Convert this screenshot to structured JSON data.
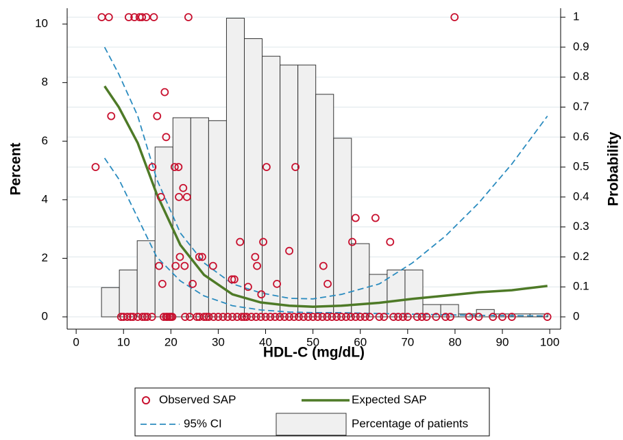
{
  "chart_data": {
    "type": "histogram",
    "xlabel": "HDL-C (mg/dL)",
    "ylabel": "Percent",
    "y2label": "Probability",
    "xlim": [
      -1.9,
      102.3
    ],
    "ylim": [
      -0.42,
      10.54
    ],
    "y2lim": [
      -0.041,
      1.03
    ],
    "xticks": [
      0,
      10,
      20,
      30,
      40,
      50,
      60,
      70,
      80,
      90,
      100
    ],
    "yticks": [
      0,
      2,
      4,
      6,
      8,
      10
    ],
    "y2ticks": [
      0,
      0.1,
      0.2,
      0.3,
      0.4,
      0.5,
      0.6,
      0.7,
      0.8,
      0.9,
      1
    ],
    "grid": true,
    "series": [
      {
        "name": "Observed SAP",
        "type": "scatter",
        "axis": "y2",
        "color": "#c8102e",
        "x": [
          5.4,
          6.9,
          11.1,
          12.3,
          13.4,
          13.9,
          14.8,
          16.4,
          23.7,
          79.9,
          7.4,
          4.1,
          18.7,
          17.1,
          19,
          16.1,
          20.8,
          21.6,
          22.6,
          23.4,
          21.7,
          17.9,
          40.2,
          46.3,
          59,
          63.2,
          58.3,
          66.3,
          34.6,
          39.5,
          37.8,
          38.2,
          45,
          17.5,
          21.9,
          26,
          26.6,
          22.9,
          21,
          28.9,
          52.2,
          18.2,
          24.6,
          32.9,
          33.4,
          36.3,
          39.1,
          42.4,
          53.1,
          9.5,
          10,
          10.8,
          11.5,
          12,
          13,
          14,
          14.5,
          15,
          16,
          18.5,
          19,
          19.3,
          19.7,
          20,
          20.3,
          23,
          24,
          25.5,
          26,
          27,
          27.5,
          28,
          29,
          30,
          31,
          32,
          33,
          34,
          35,
          35.5,
          36,
          37,
          38,
          39,
          40,
          41,
          42,
          43,
          44,
          45,
          46,
          47,
          48,
          49,
          50,
          51,
          52,
          53,
          54,
          55,
          56,
          57,
          58,
          59,
          60,
          61,
          62,
          64,
          65,
          67,
          68,
          69,
          70,
          72,
          73,
          74,
          76,
          78,
          79,
          83,
          85,
          88,
          90,
          92,
          99.5
        ],
        "values": [
          1,
          1,
          1,
          1,
          1,
          1,
          1,
          1,
          1,
          1,
          0.67,
          0.5,
          0.75,
          0.67,
          0.6,
          0.5,
          0.5,
          0.5,
          0.43,
          0.4,
          0.4,
          0.4,
          0.5,
          0.5,
          0.33,
          0.33,
          0.25,
          0.25,
          0.25,
          0.25,
          0.2,
          0.17,
          0.22,
          0.17,
          0.2,
          0.2,
          0.2,
          0.17,
          0.17,
          0.17,
          0.17,
          0.11,
          0.11,
          0.125,
          0.125,
          0.1,
          0.075,
          0.11,
          0.11,
          0,
          0,
          0,
          0,
          0,
          0,
          0,
          0,
          0,
          0,
          0,
          0,
          0,
          0,
          0,
          0,
          0,
          0,
          0,
          0,
          0,
          0,
          0,
          0,
          0,
          0,
          0,
          0,
          0,
          0,
          0,
          0,
          0,
          0,
          0,
          0,
          0,
          0,
          0,
          0,
          0,
          0,
          0,
          0,
          0,
          0,
          0,
          0,
          0,
          0,
          0,
          0,
          0,
          0,
          0,
          0,
          0,
          0,
          0,
          0,
          0,
          0,
          0,
          0,
          0,
          0,
          0,
          0,
          0,
          0,
          0,
          0,
          0,
          0,
          0,
          0
        ]
      },
      {
        "name": "Expected SAP",
        "type": "line",
        "axis": "y2",
        "color": "#4e7a27",
        "x": [
          6,
          9,
          13,
          17,
          22,
          27,
          33,
          39,
          45,
          50,
          56,
          64,
          71,
          78,
          85,
          92,
          99.5
        ],
        "values": [
          0.77,
          0.7,
          0.58,
          0.41,
          0.24,
          0.14,
          0.075,
          0.048,
          0.037,
          0.034,
          0.037,
          0.047,
          0.06,
          0.071,
          0.082,
          0.089,
          0.103
        ]
      },
      {
        "name": "95% CI",
        "type": "ci",
        "axis": "y2",
        "color": "#2a8bbf",
        "x": [
          6,
          9,
          13,
          17,
          22,
          27,
          33,
          39,
          45,
          50,
          56,
          64,
          71,
          78,
          85,
          92,
          99.5
        ],
        "upper": [
          0.9,
          0.81,
          0.67,
          0.46,
          0.28,
          0.18,
          0.11,
          0.08,
          0.062,
          0.06,
          0.075,
          0.11,
          0.18,
          0.27,
          0.38,
          0.51,
          0.67
        ],
        "lower": [
          0.53,
          0.46,
          0.33,
          0.2,
          0.12,
          0.07,
          0.037,
          0.023,
          0.016,
          0.014,
          0.014,
          0.011,
          0.009,
          0.007,
          0.005,
          0.004,
          0.003
        ]
      },
      {
        "name": "Percentage of patients",
        "type": "histogram",
        "color": "#f0f0f0",
        "bins": [
          5.35,
          9.12,
          12.89,
          16.66,
          20.43,
          24.2,
          27.97,
          31.74,
          35.51,
          39.28,
          43.05,
          46.82,
          50.59,
          54.36,
          58.13,
          61.9,
          65.67,
          69.44,
          73.21,
          76.98,
          80.75,
          84.52,
          88.29,
          92.06,
          95.83,
          99.6
        ],
        "values": [
          1,
          1.6,
          2.6,
          5.8,
          6.8,
          6.8,
          6.7,
          10.2,
          9.5,
          8.9,
          8.6,
          8.6,
          7.6,
          6.1,
          2.5,
          1.45,
          1.6,
          1.6,
          0.42,
          0.42,
          0.1,
          0.25,
          0.1,
          0.1,
          0.1
        ]
      }
    ]
  }
}
